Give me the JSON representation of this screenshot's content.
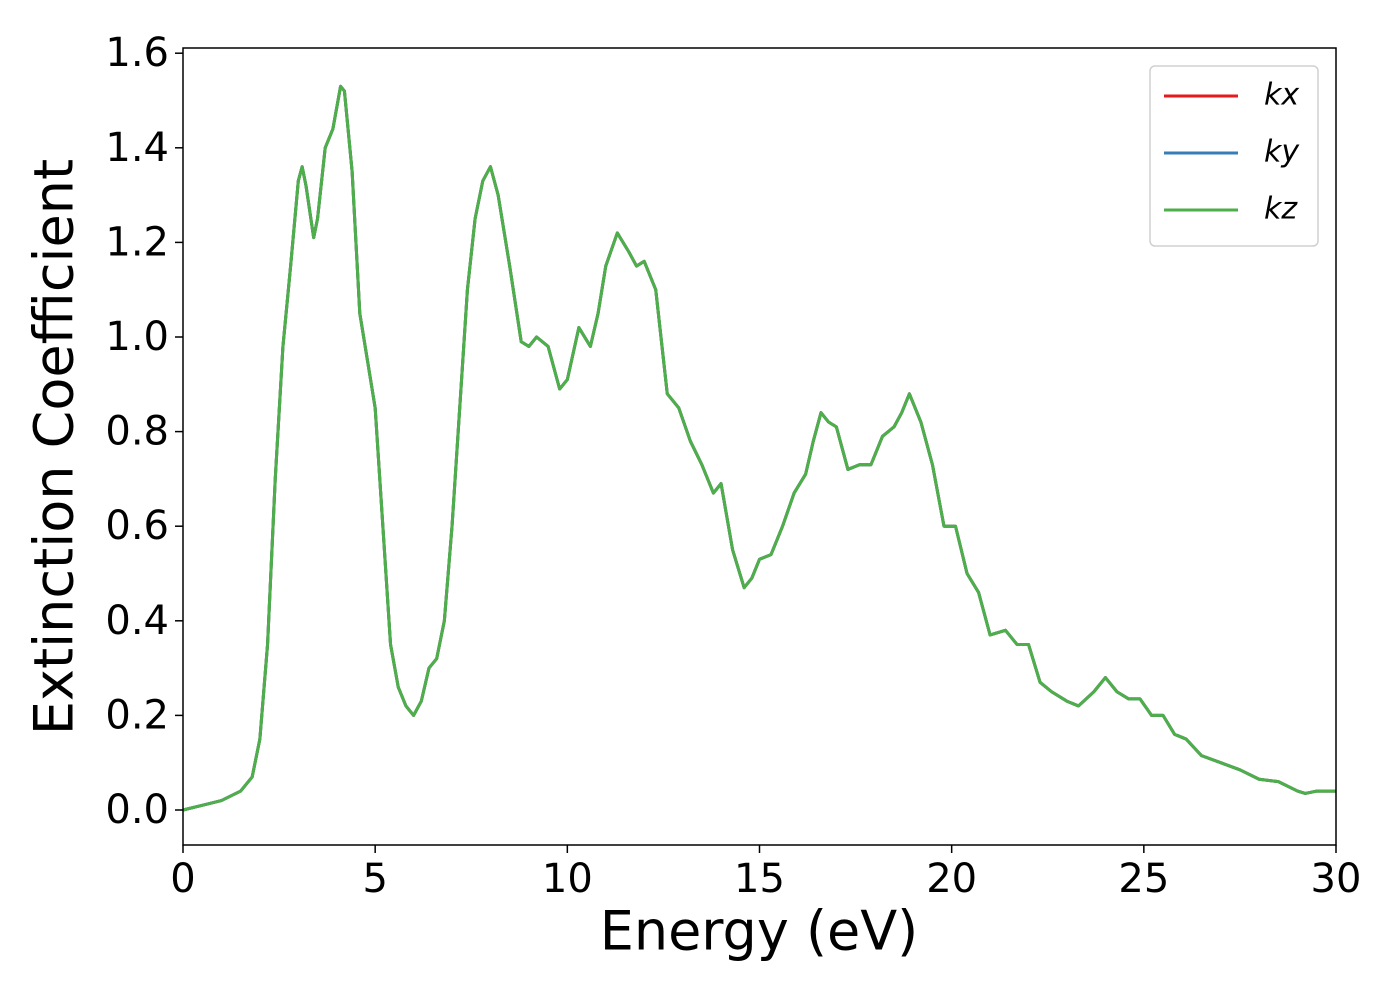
{
  "chart_data": {
    "type": "line",
    "xlabel": "Energy (eV)",
    "ylabel": "Extinction Coefficient",
    "x": [
      0,
      0.5,
      1,
      1.5,
      1.8,
      2.0,
      2.2,
      2.4,
      2.6,
      2.8,
      3.0,
      3.1,
      3.2,
      3.4,
      3.5,
      3.7,
      3.9,
      4.1,
      4.2,
      4.4,
      4.6,
      4.8,
      5.0,
      5.2,
      5.4,
      5.6,
      5.8,
      6.0,
      6.2,
      6.4,
      6.6,
      6.8,
      7.0,
      7.2,
      7.4,
      7.6,
      7.8,
      8.0,
      8.2,
      8.5,
      8.8,
      9.0,
      9.2,
      9.5,
      9.8,
      10.0,
      10.3,
      10.6,
      10.8,
      11.0,
      11.3,
      11.6,
      11.8,
      12.0,
      12.3,
      12.6,
      12.9,
      13.2,
      13.5,
      13.8,
      14.0,
      14.3,
      14.6,
      14.8,
      15.0,
      15.3,
      15.6,
      15.9,
      16.2,
      16.4,
      16.6,
      16.8,
      17.0,
      17.3,
      17.6,
      17.9,
      18.2,
      18.5,
      18.7,
      18.9,
      19.2,
      19.5,
      19.8,
      20.1,
      20.4,
      20.7,
      21.0,
      21.4,
      21.7,
      22.0,
      22.3,
      22.6,
      23.0,
      23.3,
      23.7,
      24.0,
      24.3,
      24.6,
      24.9,
      25.2,
      25.5,
      25.8,
      26.1,
      26.5,
      27.0,
      27.5,
      28.0,
      28.5,
      29.0,
      29.2,
      29.5,
      30.0
    ],
    "series": [
      {
        "name": "kx",
        "color": "#e41a1c",
        "values": [
          0,
          0.01,
          0.02,
          0.04,
          0.07,
          0.15,
          0.35,
          0.7,
          0.98,
          1.15,
          1.33,
          1.36,
          1.32,
          1.21,
          1.25,
          1.4,
          1.44,
          1.53,
          1.52,
          1.35,
          1.05,
          0.95,
          0.85,
          0.6,
          0.35,
          0.26,
          0.22,
          0.2,
          0.23,
          0.3,
          0.32,
          0.4,
          0.6,
          0.85,
          1.1,
          1.25,
          1.33,
          1.36,
          1.3,
          1.15,
          0.99,
          0.98,
          1.0,
          0.98,
          0.89,
          0.91,
          1.02,
          0.98,
          1.05,
          1.15,
          1.22,
          1.18,
          1.15,
          1.16,
          1.1,
          0.88,
          0.85,
          0.78,
          0.73,
          0.67,
          0.69,
          0.55,
          0.47,
          0.49,
          0.53,
          0.54,
          0.6,
          0.67,
          0.71,
          0.78,
          0.84,
          0.82,
          0.81,
          0.72,
          0.73,
          0.73,
          0.79,
          0.81,
          0.84,
          0.88,
          0.82,
          0.73,
          0.6,
          0.6,
          0.5,
          0.46,
          0.37,
          0.38,
          0.35,
          0.35,
          0.27,
          0.25,
          0.23,
          0.22,
          0.25,
          0.28,
          0.25,
          0.235,
          0.235,
          0.2,
          0.2,
          0.16,
          0.15,
          0.115,
          0.1,
          0.085,
          0.065,
          0.06,
          0.04,
          0.035,
          0.04,
          0.04
        ]
      },
      {
        "name": "ky",
        "color": "#377eb8",
        "values": [
          0,
          0.01,
          0.02,
          0.04,
          0.07,
          0.15,
          0.35,
          0.7,
          0.98,
          1.15,
          1.33,
          1.36,
          1.32,
          1.21,
          1.25,
          1.4,
          1.44,
          1.53,
          1.52,
          1.35,
          1.05,
          0.95,
          0.85,
          0.6,
          0.35,
          0.26,
          0.22,
          0.2,
          0.23,
          0.3,
          0.32,
          0.4,
          0.6,
          0.85,
          1.1,
          1.25,
          1.33,
          1.36,
          1.3,
          1.15,
          0.99,
          0.98,
          1.0,
          0.98,
          0.89,
          0.91,
          1.02,
          0.98,
          1.05,
          1.15,
          1.22,
          1.18,
          1.15,
          1.16,
          1.1,
          0.88,
          0.85,
          0.78,
          0.73,
          0.67,
          0.69,
          0.55,
          0.47,
          0.49,
          0.53,
          0.54,
          0.6,
          0.67,
          0.71,
          0.78,
          0.84,
          0.82,
          0.81,
          0.72,
          0.73,
          0.73,
          0.79,
          0.81,
          0.84,
          0.88,
          0.82,
          0.73,
          0.6,
          0.6,
          0.5,
          0.46,
          0.37,
          0.38,
          0.35,
          0.35,
          0.27,
          0.25,
          0.23,
          0.22,
          0.25,
          0.28,
          0.25,
          0.235,
          0.235,
          0.2,
          0.2,
          0.16,
          0.15,
          0.115,
          0.1,
          0.085,
          0.065,
          0.06,
          0.04,
          0.035,
          0.04,
          0.04
        ]
      },
      {
        "name": "kz",
        "color": "#4daf4a",
        "values": [
          0,
          0.01,
          0.02,
          0.04,
          0.07,
          0.15,
          0.35,
          0.7,
          0.98,
          1.15,
          1.33,
          1.36,
          1.32,
          1.21,
          1.25,
          1.4,
          1.44,
          1.53,
          1.52,
          1.35,
          1.05,
          0.95,
          0.85,
          0.6,
          0.35,
          0.26,
          0.22,
          0.2,
          0.23,
          0.3,
          0.32,
          0.4,
          0.6,
          0.85,
          1.1,
          1.25,
          1.33,
          1.36,
          1.3,
          1.15,
          0.99,
          0.98,
          1.0,
          0.98,
          0.89,
          0.91,
          1.02,
          0.98,
          1.05,
          1.15,
          1.22,
          1.18,
          1.15,
          1.16,
          1.1,
          0.88,
          0.85,
          0.78,
          0.73,
          0.67,
          0.69,
          0.55,
          0.47,
          0.49,
          0.53,
          0.54,
          0.6,
          0.67,
          0.71,
          0.78,
          0.84,
          0.82,
          0.81,
          0.72,
          0.73,
          0.73,
          0.79,
          0.81,
          0.84,
          0.88,
          0.82,
          0.73,
          0.6,
          0.6,
          0.5,
          0.46,
          0.37,
          0.38,
          0.35,
          0.35,
          0.27,
          0.25,
          0.23,
          0.22,
          0.25,
          0.28,
          0.25,
          0.235,
          0.235,
          0.2,
          0.2,
          0.16,
          0.15,
          0.115,
          0.1,
          0.085,
          0.065,
          0.06,
          0.04,
          0.035,
          0.04,
          0.04
        ]
      }
    ],
    "xlim": [
      0,
      30
    ],
    "xticks": [
      0,
      5,
      10,
      15,
      20,
      25,
      30
    ],
    "ylim": [
      -0.074,
      1.611
    ],
    "yticks": [
      {
        "value": 0,
        "label": "0.0"
      },
      0.2,
      0.4,
      0.6,
      0.8,
      {
        "value": 1,
        "label": "1.0"
      },
      1.2,
      1.4,
      1.6
    ],
    "grid": false,
    "legend": "upper right"
  }
}
